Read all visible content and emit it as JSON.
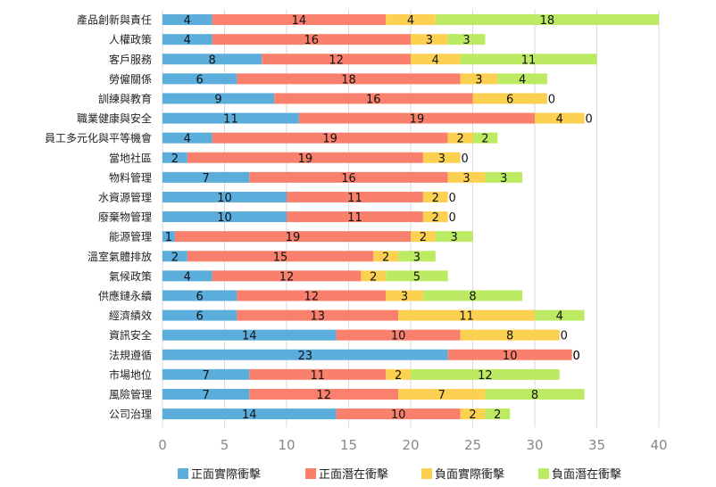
{
  "chart_data": {
    "type": "bar",
    "orientation": "horizontal",
    "stacked": true,
    "categories": [
      "產品創新與責任",
      "人權政策",
      "客戶服務",
      "勞僱關係",
      "訓練與教育",
      "職業健康與安全",
      "員工多元化與平等機會",
      "當地社區",
      "物料管理",
      "水資源管理",
      "廢棄物管理",
      "能源管理",
      "溫室氣體排放",
      "氣候政策",
      "供應鏈永續",
      "經濟績效",
      "資訊安全",
      "法規遵循",
      "市場地位",
      "風險管理",
      "公司治理"
    ],
    "series": [
      {
        "name": "正面實際衝擊",
        "color": "#5BAEDB",
        "values": [
          4,
          4,
          8,
          6,
          9,
          11,
          4,
          2,
          7,
          10,
          10,
          1,
          2,
          4,
          6,
          6,
          14,
          23,
          7,
          7,
          14
        ]
      },
      {
        "name": "正面潛在衝擊",
        "color": "#F9806D",
        "values": [
          14,
          16,
          12,
          18,
          16,
          19,
          19,
          19,
          16,
          11,
          11,
          19,
          15,
          12,
          12,
          13,
          10,
          10,
          11,
          12,
          10
        ]
      },
      {
        "name": "負面實際衝擊",
        "color": "#FCD051",
        "values": [
          4,
          3,
          4,
          3,
          6,
          4,
          2,
          3,
          3,
          2,
          2,
          2,
          2,
          2,
          3,
          11,
          8,
          0,
          2,
          7,
          2
        ]
      },
      {
        "name": "負面潛在衝擊",
        "color": "#BDEA63",
        "values": [
          18,
          3,
          11,
          4,
          0,
          0,
          2,
          0,
          3,
          0,
          0,
          3,
          3,
          5,
          8,
          4,
          0,
          0,
          12,
          8,
          2
        ]
      }
    ],
    "xlim": [
      0,
      40
    ],
    "x_ticks": [
      0,
      5,
      10,
      15,
      20,
      25,
      30,
      35,
      40
    ],
    "grid": true,
    "legend_position": "bottom",
    "title": "",
    "xlabel": "",
    "ylabel": ""
  }
}
